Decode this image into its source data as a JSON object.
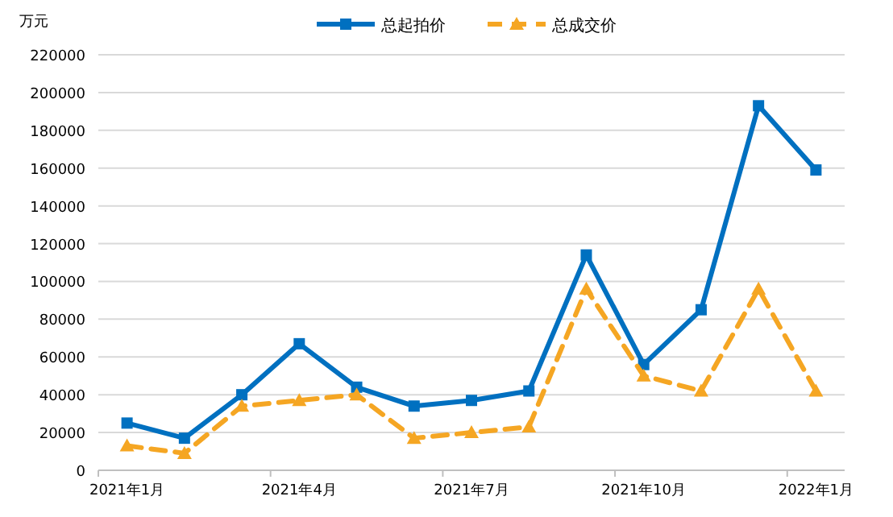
{
  "chart_data": {
    "type": "line",
    "ylabel": "万元",
    "categories": [
      "2021年1月",
      null,
      null,
      "2021年4月",
      null,
      null,
      "2021年7月",
      null,
      null,
      "2021年10月",
      null,
      null,
      "2022年1月"
    ],
    "series": [
      {
        "name": "总起拍价",
        "color": "#0070c0",
        "marker": "square",
        "line_style": "solid",
        "values": [
          25000,
          17000,
          40000,
          67000,
          44000,
          34000,
          37000,
          42000,
          114000,
          56000,
          85000,
          193000,
          159000
        ]
      },
      {
        "name": "总成交价",
        "color": "#f5a623",
        "marker": "triangle",
        "line_style": "dashed",
        "values": [
          13000,
          9000,
          34000,
          37000,
          40000,
          17000,
          20000,
          23000,
          96000,
          50000,
          42000,
          96000,
          42000
        ]
      }
    ],
    "ylim": [
      0,
      220000
    ],
    "yticks": [
      0,
      20000,
      40000,
      60000,
      80000,
      100000,
      120000,
      140000,
      160000,
      180000,
      200000,
      220000
    ],
    "grid": "y",
    "legend": "top"
  }
}
